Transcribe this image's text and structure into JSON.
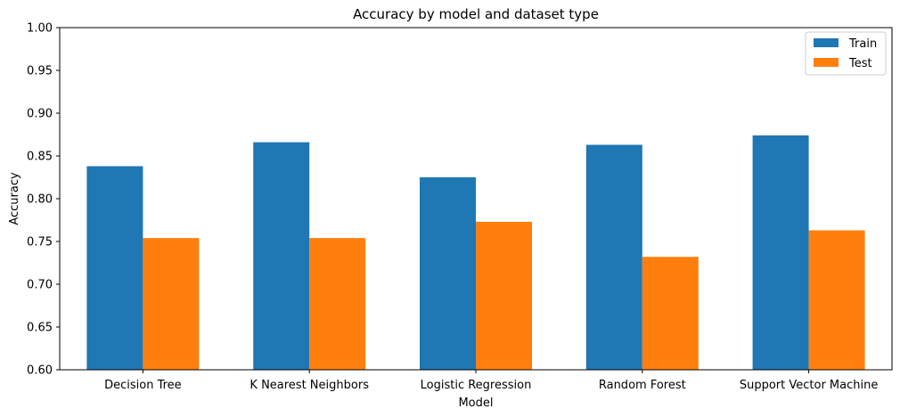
{
  "chart_data": {
    "type": "bar",
    "title": "Accuracy by model and dataset type",
    "xlabel": "Model",
    "ylabel": "Accuracy",
    "ylim": [
      0.6,
      1.0
    ],
    "yticks": [
      "0.60",
      "0.65",
      "0.70",
      "0.75",
      "0.80",
      "0.85",
      "0.90",
      "0.95",
      "1.00"
    ],
    "categories": [
      "Decision Tree",
      "K Nearest Neighbors",
      "Logistic Regression",
      "Random Forest",
      "Support Vector Machine"
    ],
    "series": [
      {
        "name": "Train",
        "color": "#1f77b4",
        "values": [
          0.838,
          0.866,
          0.825,
          0.863,
          0.874
        ]
      },
      {
        "name": "Test",
        "color": "#ff7f0e",
        "values": [
          0.754,
          0.754,
          0.773,
          0.732,
          0.763
        ]
      }
    ],
    "grid": false,
    "legend_position": "top-right"
  }
}
